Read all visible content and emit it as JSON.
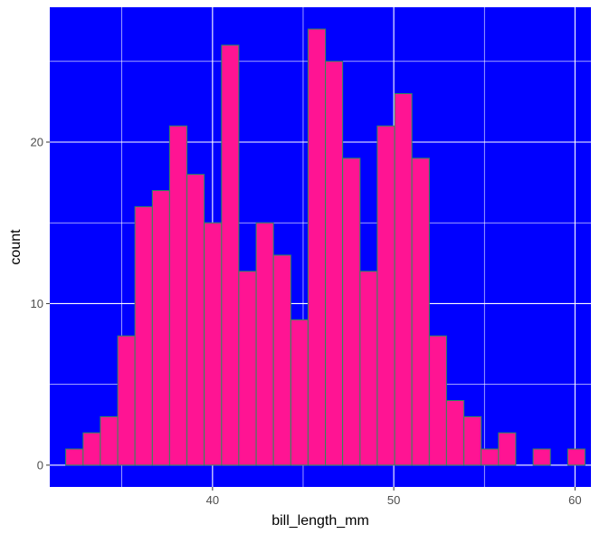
{
  "chart_data": {
    "type": "bar",
    "subtype": "histogram",
    "title": "",
    "xlabel": "bill_length_mm",
    "ylabel": "count",
    "xlim": [
      31.02,
      60.88
    ],
    "ylim": [
      -1.35,
      28.35
    ],
    "x_ticks": [
      40,
      50,
      60
    ],
    "y_ticks": [
      0,
      10,
      20
    ],
    "grid": true,
    "panel_color": "#0000ff",
    "bar_fill": "#ff1493",
    "bar_outline": "#2e8b57",
    "grid_color": "#ffffff",
    "bins": [
      {
        "start": 31.9,
        "end": 32.86,
        "count": 1
      },
      {
        "start": 32.86,
        "end": 33.81,
        "count": 2
      },
      {
        "start": 33.81,
        "end": 34.77,
        "count": 3
      },
      {
        "start": 34.77,
        "end": 35.72,
        "count": 8
      },
      {
        "start": 35.72,
        "end": 36.68,
        "count": 16
      },
      {
        "start": 36.68,
        "end": 37.63,
        "count": 17
      },
      {
        "start": 37.63,
        "end": 38.59,
        "count": 21
      },
      {
        "start": 38.59,
        "end": 39.54,
        "count": 18
      },
      {
        "start": 39.54,
        "end": 40.5,
        "count": 15
      },
      {
        "start": 40.5,
        "end": 41.45,
        "count": 26
      },
      {
        "start": 41.45,
        "end": 42.41,
        "count": 12
      },
      {
        "start": 42.41,
        "end": 43.36,
        "count": 15
      },
      {
        "start": 43.36,
        "end": 44.32,
        "count": 13
      },
      {
        "start": 44.32,
        "end": 45.27,
        "count": 9
      },
      {
        "start": 45.27,
        "end": 46.23,
        "count": 27
      },
      {
        "start": 46.23,
        "end": 47.18,
        "count": 25
      },
      {
        "start": 47.18,
        "end": 48.14,
        "count": 19
      },
      {
        "start": 48.14,
        "end": 49.09,
        "count": 12
      },
      {
        "start": 49.09,
        "end": 50.05,
        "count": 21
      },
      {
        "start": 50.05,
        "end": 51.0,
        "count": 23
      },
      {
        "start": 51.0,
        "end": 51.96,
        "count": 19
      },
      {
        "start": 51.96,
        "end": 52.91,
        "count": 8
      },
      {
        "start": 52.91,
        "end": 53.87,
        "count": 4
      },
      {
        "start": 53.87,
        "end": 54.82,
        "count": 3
      },
      {
        "start": 54.82,
        "end": 55.78,
        "count": 1
      },
      {
        "start": 55.78,
        "end": 56.73,
        "count": 2
      },
      {
        "start": 56.73,
        "end": 57.69,
        "count": 0
      },
      {
        "start": 57.69,
        "end": 58.64,
        "count": 1
      },
      {
        "start": 58.64,
        "end": 59.6,
        "count": 0
      },
      {
        "start": 59.6,
        "end": 60.55,
        "count": 1
      }
    ]
  }
}
